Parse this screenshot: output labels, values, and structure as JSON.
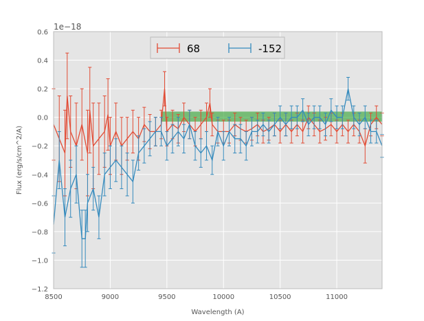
{
  "chart_data": {
    "type": "line",
    "title": "",
    "xlabel": "Wavelength (A)",
    "ylabel": "Flux (erg/s/cm^2/A)",
    "y_offset_label": "1e−18",
    "xlim": [
      8500,
      11400
    ],
    "ylim": [
      -1.2,
      0.6
    ],
    "xticks": [
      8500,
      9000,
      9500,
      10000,
      10500,
      11000
    ],
    "xtick_labels": [
      "8500",
      "9000",
      "9500",
      "10000",
      "10500",
      "11000"
    ],
    "yticks": [
      -1.2,
      -1.0,
      -0.8,
      -0.6,
      -0.4,
      -0.2,
      0.0,
      0.2,
      0.4,
      0.6
    ],
    "ytick_labels": [
      "−1.2",
      "−1.0",
      "−0.8",
      "−0.6",
      "−0.4",
      "−0.2",
      "0.0",
      "0.2",
      "0.4",
      "0.6"
    ],
    "grid": true,
    "legend_position": "top-center",
    "band": {
      "x": [
        9450,
        11400
      ],
      "y": [
        -0.03,
        0.04
      ],
      "color": "#2ca02c"
    },
    "series": [
      {
        "name": "68",
        "color": "#e24a33",
        "x": [
          8500,
          8550,
          8600,
          8620,
          8650,
          8700,
          8750,
          8800,
          8820,
          8850,
          8900,
          8950,
          8980,
          9000,
          9050,
          9100,
          9150,
          9200,
          9250,
          9300,
          9350,
          9400,
          9450,
          9480,
          9500,
          9550,
          9600,
          9650,
          9700,
          9750,
          9800,
          9850,
          9880,
          9900,
          9950,
          10000,
          10050,
          10100,
          10150,
          10200,
          10250,
          10300,
          10350,
          10400,
          10450,
          10500,
          10550,
          10600,
          10650,
          10700,
          10750,
          10800,
          10850,
          10900,
          10950,
          11000,
          11050,
          11100,
          11150,
          11200,
          11250,
          11300,
          11350,
          11400
        ],
        "y": [
          -0.05,
          -0.15,
          -0.25,
          0.15,
          -0.1,
          -0.2,
          -0.05,
          -0.25,
          0.05,
          -0.2,
          -0.15,
          -0.1,
          0.02,
          -0.2,
          -0.1,
          -0.2,
          -0.15,
          -0.1,
          -0.15,
          -0.05,
          -0.1,
          -0.1,
          -0.05,
          0.2,
          -0.1,
          -0.05,
          -0.08,
          0.0,
          -0.05,
          -0.1,
          -0.05,
          0.0,
          0.1,
          -0.05,
          -0.1,
          -0.1,
          -0.1,
          -0.05,
          -0.08,
          -0.1,
          -0.08,
          -0.05,
          -0.1,
          -0.08,
          -0.05,
          -0.1,
          -0.05,
          -0.1,
          -0.05,
          -0.1,
          0.0,
          -0.05,
          -0.1,
          -0.08,
          -0.05,
          -0.1,
          -0.05,
          -0.1,
          -0.05,
          -0.1,
          -0.2,
          -0.05,
          0.0,
          -0.05
        ],
        "yerr": [
          0.25,
          0.3,
          0.3,
          0.3,
          0.25,
          0.3,
          0.25,
          0.3,
          0.3,
          0.3,
          0.25,
          0.25,
          0.25,
          0.2,
          0.2,
          0.2,
          0.15,
          0.15,
          0.15,
          0.12,
          0.12,
          0.1,
          0.1,
          0.12,
          0.1,
          0.1,
          0.1,
          0.1,
          0.1,
          0.1,
          0.1,
          0.1,
          0.1,
          0.08,
          0.08,
          0.08,
          0.08,
          0.08,
          0.08,
          0.08,
          0.08,
          0.08,
          0.08,
          0.08,
          0.08,
          0.08,
          0.08,
          0.08,
          0.08,
          0.08,
          0.08,
          0.08,
          0.08,
          0.08,
          0.08,
          0.08,
          0.08,
          0.08,
          0.08,
          0.08,
          0.12,
          0.08,
          0.08,
          0.08
        ]
      },
      {
        "name": "-152",
        "color": "#348abd",
        "x": [
          8500,
          8550,
          8600,
          8650,
          8700,
          8750,
          8780,
          8800,
          8850,
          8900,
          8950,
          9000,
          9050,
          9100,
          9150,
          9200,
          9250,
          9300,
          9350,
          9400,
          9450,
          9500,
          9550,
          9600,
          9650,
          9700,
          9750,
          9800,
          9850,
          9900,
          9950,
          10000,
          10050,
          10100,
          10150,
          10200,
          10250,
          10300,
          10350,
          10400,
          10450,
          10500,
          10550,
          10600,
          10650,
          10700,
          10750,
          10800,
          10850,
          10900,
          10950,
          11000,
          11050,
          11100,
          11150,
          11200,
          11250,
          11300,
          11350,
          11400
        ],
        "y": [
          -0.75,
          -0.3,
          -0.7,
          -0.5,
          -0.4,
          -0.85,
          -0.85,
          -0.6,
          -0.5,
          -0.7,
          -0.4,
          -0.35,
          -0.3,
          -0.35,
          -0.4,
          -0.45,
          -0.25,
          -0.2,
          -0.15,
          -0.1,
          -0.1,
          -0.2,
          -0.15,
          -0.1,
          -0.15,
          -0.05,
          -0.2,
          -0.25,
          -0.2,
          -0.3,
          -0.1,
          -0.2,
          -0.1,
          -0.15,
          -0.15,
          -0.2,
          -0.1,
          -0.1,
          -0.05,
          -0.1,
          -0.05,
          0.0,
          -0.05,
          0.0,
          0.0,
          0.05,
          -0.05,
          0.0,
          0.0,
          -0.05,
          0.05,
          0.0,
          0.0,
          0.2,
          0.0,
          -0.05,
          0.0,
          -0.1,
          -0.1,
          -0.2
        ],
        "yerr": [
          0.2,
          0.2,
          0.2,
          0.2,
          0.2,
          0.2,
          0.2,
          0.2,
          0.15,
          0.15,
          0.15,
          0.15,
          0.15,
          0.15,
          0.15,
          0.15,
          0.12,
          0.12,
          0.12,
          0.1,
          0.1,
          0.1,
          0.1,
          0.1,
          0.1,
          0.1,
          0.1,
          0.1,
          0.1,
          0.1,
          0.1,
          0.1,
          0.1,
          0.1,
          0.1,
          0.1,
          0.1,
          0.08,
          0.08,
          0.08,
          0.08,
          0.08,
          0.08,
          0.08,
          0.08,
          0.08,
          0.08,
          0.08,
          0.08,
          0.08,
          0.08,
          0.08,
          0.08,
          0.08,
          0.08,
          0.08,
          0.08,
          0.08,
          0.08,
          0.08
        ]
      }
    ]
  }
}
